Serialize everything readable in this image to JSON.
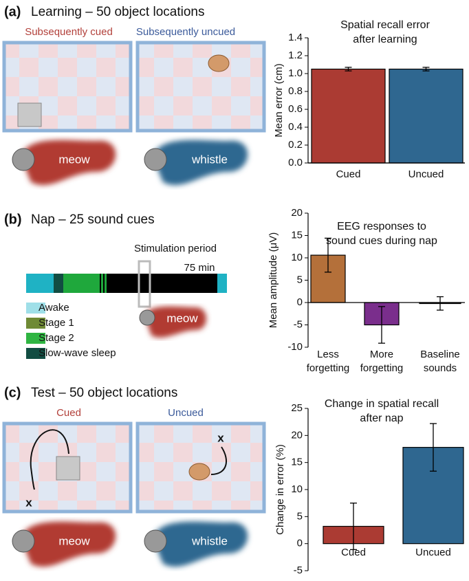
{
  "panels": [
    {
      "label": "(a)",
      "title": "Learning – 50 object locations",
      "left_caption": "Subsequently cued",
      "right_caption": "Subsequently uncued",
      "left_sound": "meow",
      "right_sound": "whistle"
    },
    {
      "label": "(b)",
      "title": "Nap – 25 sound cues",
      "stim_label": "Stimulation period",
      "duration": "75 min",
      "legend": [
        "Awake",
        "Stage 1",
        "Stage 2",
        "Slow-wave sleep"
      ],
      "sound": "meow"
    },
    {
      "label": "(c)",
      "title": "Test – 50 object locations",
      "left_caption": "Cued",
      "right_caption": "Uncued",
      "left_sound": "meow",
      "right_sound": "whistle",
      "left_mark": "x",
      "right_mark": "x"
    }
  ],
  "chart_data": [
    {
      "type": "bar",
      "title": [
        "Spatial recall error",
        "after learning"
      ],
      "ylabel": "Mean error (cm)",
      "categories": [
        [
          "Cued"
        ],
        [
          "Uncued"
        ]
      ],
      "values": [
        1.05,
        1.05
      ],
      "errors": [
        0.02,
        0.02
      ],
      "colors": [
        "#ab3b33",
        "#2f6790"
      ],
      "ylim": [
        0,
        1.4
      ],
      "yticks": [
        {
          "value": 0,
          "label": "0.0"
        },
        0.2,
        0.4,
        0.6,
        0.8,
        {
          "value": 1,
          "label": "1.0"
        },
        1.2,
        1.4
      ]
    },
    {
      "type": "bar",
      "title": [
        "EEG responses to",
        "sound cues during nap"
      ],
      "ylabel": "Mean amplitude (μV)",
      "categories": [
        [
          "Less",
          "forgetting"
        ],
        [
          "More",
          "forgetting"
        ],
        [
          "Baseline",
          "sounds"
        ]
      ],
      "values": [
        10.6,
        -5.0,
        -0.2
      ],
      "errors": [
        3.8,
        4.1,
        1.5
      ],
      "colors": [
        "#b4703a",
        "#7a2e8c",
        "#444444"
      ],
      "ylim": [
        -10,
        20
      ],
      "yticks": [
        -10,
        -5,
        0,
        5,
        10,
        15,
        20
      ]
    },
    {
      "type": "bar",
      "title": [
        "Change in spatial recall",
        "after nap"
      ],
      "ylabel": "Change in error (%)",
      "categories": [
        [
          "Cued"
        ],
        [
          "Uncued"
        ]
      ],
      "values": [
        3.2,
        17.8
      ],
      "errors": [
        4.3,
        4.4
      ],
      "colors": [
        "#ab3b33",
        "#2f6790"
      ],
      "ylim": [
        -5,
        25
      ],
      "yticks": [
        -5,
        0,
        5,
        10,
        15,
        20,
        25
      ]
    }
  ]
}
